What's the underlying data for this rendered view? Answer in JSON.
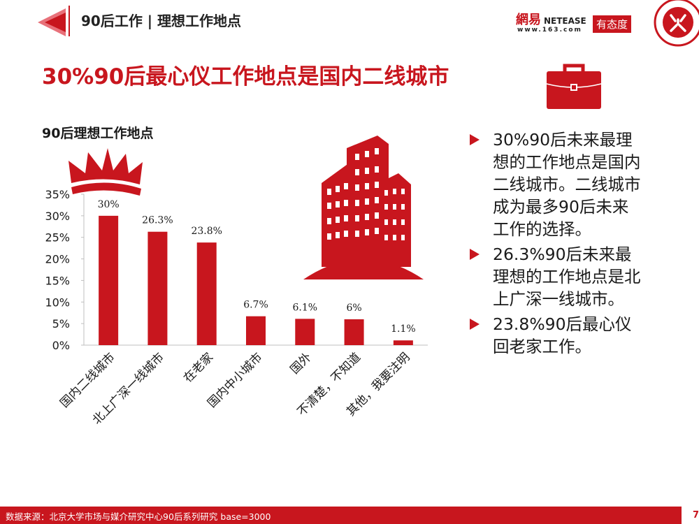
{
  "header": {
    "title": "90后工作 | 理想工作地点"
  },
  "logo": {
    "brand_cn": "網易",
    "brand_en": "NETEASE",
    "site": "www.163.com",
    "tag": "有态度"
  },
  "main_title": "30%90后最心仪工作地点是国内二线城市",
  "chart_title": "90后理想工作地点",
  "chart_data": {
    "type": "bar",
    "title": "90后理想工作地点",
    "categories": [
      "国内二线城市",
      "北上广深一线城市",
      "在老家",
      "国内中小城市",
      "国外",
      "不清楚，不知道",
      "其他，我要注明"
    ],
    "values": [
      30,
      26.3,
      23.8,
      6.7,
      6.1,
      6,
      1.1
    ],
    "labels": [
      "30%",
      "26.3%",
      "23.8%",
      "6.7%",
      "6.1%",
      "6%",
      "1.1%"
    ],
    "yticks": [
      "0%",
      "5%",
      "10%",
      "15%",
      "20%",
      "25%",
      "30%",
      "35%"
    ],
    "ylim": [
      0,
      35
    ],
    "xlabel": "",
    "ylabel": "",
    "bar_color": "#c8161e",
    "grid": false
  },
  "bullets": [
    "30%90后未来最理想的工作地点是国内二线城市。二线城市成为最多90后未来工作的选择。",
    "26.3%90后未来最理想的工作地点是北上广深一线城市。",
    "23.8%90后最心仪回老家工作。"
  ],
  "footer": {
    "source": "数据来源：北京大学市场与媒介研究中心90后系列研究 base=3000",
    "page": "7"
  },
  "colors": {
    "accent": "#c8161e"
  }
}
